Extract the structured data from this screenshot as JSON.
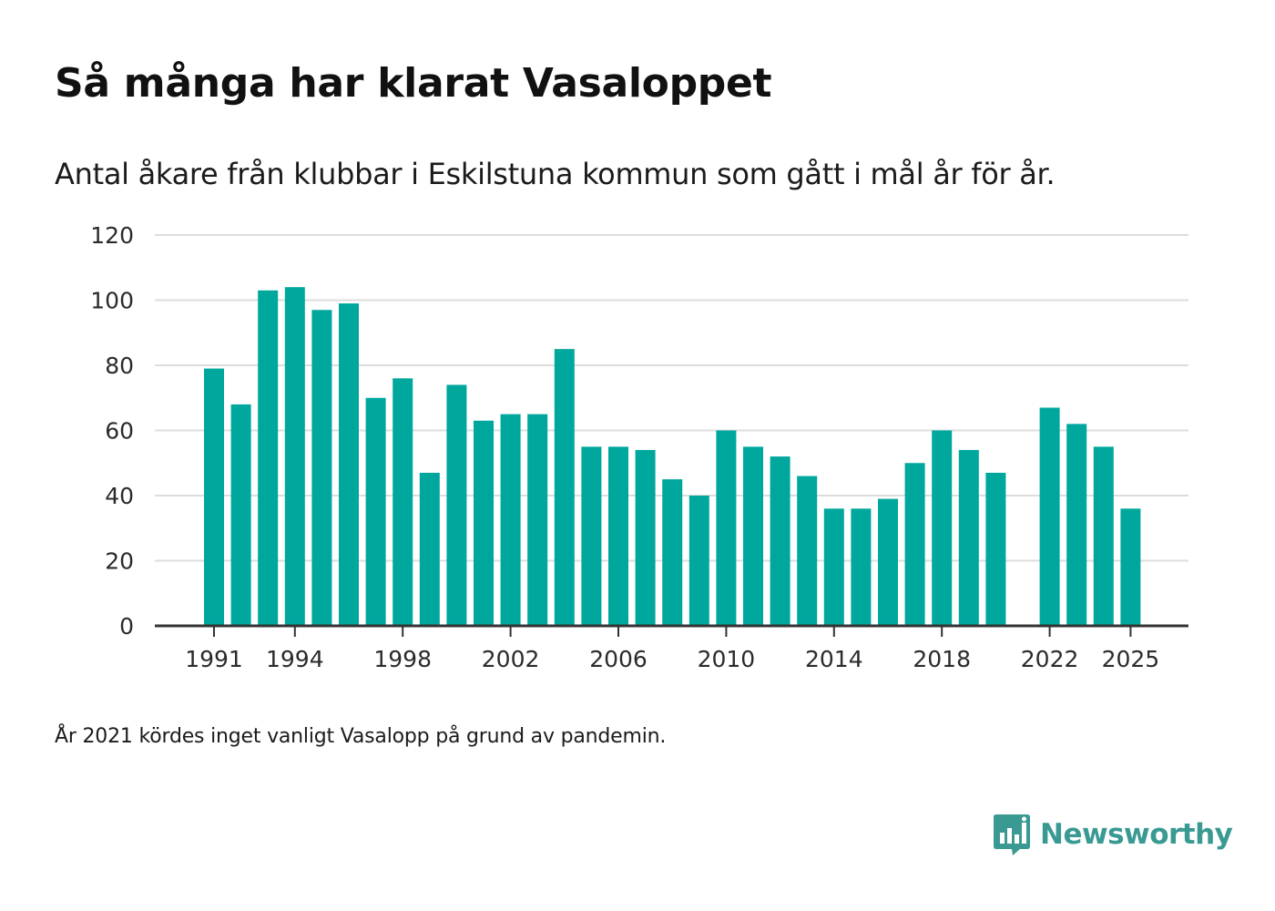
{
  "title": "Så många har klarat Vasaloppet",
  "subtitle": "Antal åkare från klubbar i Eskilstuna kommun som gått i mål år för år.",
  "note": "År 2021 kördes inget vanligt Vasalopp på grund av pandemin.",
  "logo": {
    "text": "Newsworthy",
    "icon": "newsworthy-logo-icon"
  },
  "colors": {
    "bar": "#00a79d",
    "grid": "#dddddd",
    "axis": "#333333",
    "logo": "#3a9a93"
  },
  "chart_data": {
    "type": "bar",
    "title": "Så många har klarat Vasaloppet",
    "xlabel": "",
    "ylabel": "",
    "ylim": [
      0,
      120
    ],
    "yticks": [
      0,
      20,
      40,
      60,
      80,
      100,
      120
    ],
    "xtick_labels": [
      "1991",
      "1994",
      "1998",
      "2002",
      "2006",
      "2010",
      "2014",
      "2018",
      "2022",
      "2025"
    ],
    "grid": true,
    "categories": [
      1991,
      1992,
      1993,
      1994,
      1995,
      1996,
      1997,
      1998,
      1999,
      2000,
      2001,
      2002,
      2003,
      2004,
      2005,
      2006,
      2007,
      2008,
      2009,
      2010,
      2011,
      2012,
      2013,
      2014,
      2015,
      2016,
      2017,
      2018,
      2019,
      2020,
      2021,
      2022,
      2023,
      2024,
      2025
    ],
    "values": [
      79,
      68,
      103,
      104,
      97,
      99,
      70,
      76,
      47,
      74,
      63,
      65,
      65,
      85,
      55,
      55,
      54,
      45,
      40,
      60,
      55,
      52,
      46,
      36,
      36,
      39,
      50,
      60,
      54,
      47,
      null,
      67,
      62,
      55,
      36
    ]
  }
}
